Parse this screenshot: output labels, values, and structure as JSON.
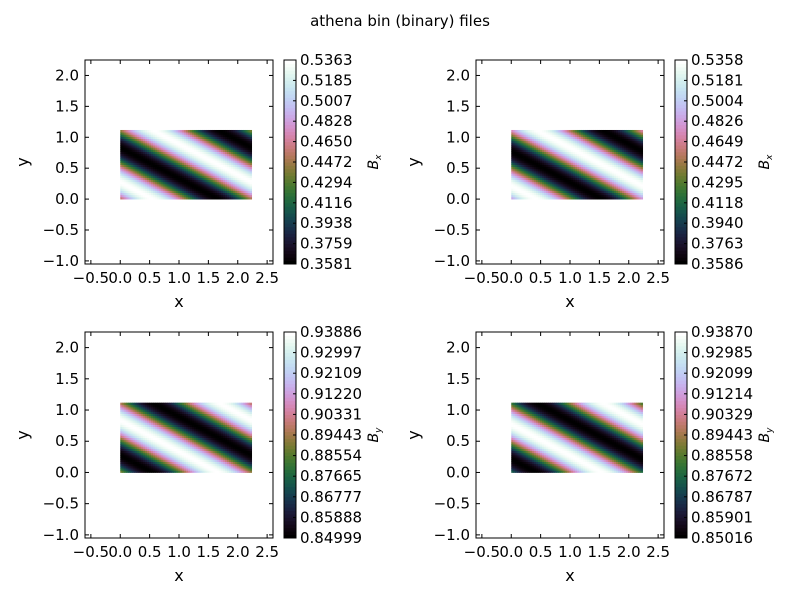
{
  "figure": {
    "title": "athena bin (binary) files"
  },
  "chart_data": [
    {
      "type": "heatmap",
      "title": "",
      "xlabel": "x",
      "ylabel": "y",
      "colorbar_label": "B_x",
      "colorbar_label_base": "B",
      "colorbar_label_sub": "x",
      "xlim": [
        -0.6,
        2.6
      ],
      "ylim": [
        -1.05,
        2.25
      ],
      "xticks": [
        -0.5,
        0.0,
        0.5,
        1.0,
        1.5,
        2.0,
        2.5
      ],
      "xtick_labels": [
        "−0.5",
        "0.0",
        "0.5",
        "1.0",
        "1.5",
        "2.0",
        "2.5"
      ],
      "yticks": [
        -1.0,
        -0.5,
        0.0,
        0.5,
        1.0,
        1.5,
        2.0
      ],
      "ytick_labels": [
        "−1.0",
        "−0.5",
        "0.0",
        "0.5",
        "1.0",
        "1.5",
        "2.0"
      ],
      "data_extent": {
        "x": [
          0.0,
          2.2361
        ],
        "y": [
          0.0,
          1.118
        ]
      },
      "colormap": "cubehelix",
      "pattern": {
        "field": "Bx",
        "phase": 0.0
      },
      "vmin": 0.3581,
      "vmax": 0.5363,
      "colorbar_ticks": [
        "0.5363",
        "0.5185",
        "0.5007",
        "0.4828",
        "0.4650",
        "0.4472",
        "0.4294",
        "0.4116",
        "0.3938",
        "0.3759",
        "0.3581"
      ],
      "grid": false
    },
    {
      "type": "heatmap",
      "title": "",
      "xlabel": "x",
      "ylabel": "y",
      "colorbar_label": "B_x",
      "colorbar_label_base": "B",
      "colorbar_label_sub": "x",
      "xlim": [
        -0.6,
        2.6
      ],
      "ylim": [
        -1.05,
        2.25
      ],
      "xticks": [
        -0.5,
        0.0,
        0.5,
        1.0,
        1.5,
        2.0,
        2.5
      ],
      "xtick_labels": [
        "−0.5",
        "0.0",
        "0.5",
        "1.0",
        "1.5",
        "2.0",
        "2.5"
      ],
      "yticks": [
        -1.0,
        -0.5,
        0.0,
        0.5,
        1.0,
        1.5,
        2.0
      ],
      "ytick_labels": [
        "−1.0",
        "−0.5",
        "0.0",
        "0.5",
        "1.0",
        "1.5",
        "2.0"
      ],
      "data_extent": {
        "x": [
          0.0,
          2.2361
        ],
        "y": [
          0.0,
          1.118
        ]
      },
      "colormap": "cubehelix",
      "pattern": {
        "field": "Bx",
        "phase": 0.35
      },
      "vmin": 0.3586,
      "vmax": 0.5358,
      "colorbar_ticks": [
        "0.5358",
        "0.5181",
        "0.5004",
        "0.4826",
        "0.4649",
        "0.4472",
        "0.4295",
        "0.4118",
        "0.3940",
        "0.3763",
        "0.3586"
      ],
      "grid": false
    },
    {
      "type": "heatmap",
      "title": "",
      "xlabel": "x",
      "ylabel": "y",
      "colorbar_label": "B_y",
      "colorbar_label_base": "B",
      "colorbar_label_sub": "y",
      "xlim": [
        -0.6,
        2.6
      ],
      "ylim": [
        -1.05,
        2.25
      ],
      "xticks": [
        -0.5,
        0.0,
        0.5,
        1.0,
        1.5,
        2.0,
        2.5
      ],
      "xtick_labels": [
        "−0.5",
        "0.0",
        "0.5",
        "1.0",
        "1.5",
        "2.0",
        "2.5"
      ],
      "yticks": [
        -1.0,
        -0.5,
        0.0,
        0.5,
        1.0,
        1.5,
        2.0
      ],
      "ytick_labels": [
        "−1.0",
        "−0.5",
        "0.0",
        "0.5",
        "1.0",
        "1.5",
        "2.0"
      ],
      "data_extent": {
        "x": [
          0.0,
          2.2361
        ],
        "y": [
          0.0,
          1.118
        ]
      },
      "colormap": "cubehelix",
      "pattern": {
        "field": "By",
        "phase": 0.0
      },
      "vmin": 0.84999,
      "vmax": 0.93886,
      "colorbar_ticks": [
        "0.93886",
        "0.92997",
        "0.92109",
        "0.91220",
        "0.90331",
        "0.89443",
        "0.88554",
        "0.87665",
        "0.86777",
        "0.85888",
        "0.84999"
      ],
      "grid": false
    },
    {
      "type": "heatmap",
      "title": "",
      "xlabel": "x",
      "ylabel": "y",
      "colorbar_label": "B_y",
      "colorbar_label_base": "B",
      "colorbar_label_sub": "y",
      "xlim": [
        -0.6,
        2.6
      ],
      "ylim": [
        -1.05,
        2.25
      ],
      "xticks": [
        -0.5,
        0.0,
        0.5,
        1.0,
        1.5,
        2.0,
        2.5
      ],
      "xtick_labels": [
        "−0.5",
        "0.0",
        "0.5",
        "1.0",
        "1.5",
        "2.0",
        "2.5"
      ],
      "yticks": [
        -1.0,
        -0.5,
        0.0,
        0.5,
        1.0,
        1.5,
        2.0
      ],
      "ytick_labels": [
        "−1.0",
        "−0.5",
        "0.0",
        "0.5",
        "1.0",
        "1.5",
        "2.0"
      ],
      "data_extent": {
        "x": [
          0.0,
          2.2361
        ],
        "y": [
          0.0,
          1.118
        ]
      },
      "colormap": "cubehelix",
      "pattern": {
        "field": "By",
        "phase": 0.35
      },
      "vmin": 0.85016,
      "vmax": 0.9387,
      "colorbar_ticks": [
        "0.93870",
        "0.92985",
        "0.92099",
        "0.91214",
        "0.90329",
        "0.89443",
        "0.88558",
        "0.87672",
        "0.86787",
        "0.85901",
        "0.85016"
      ],
      "grid": false
    }
  ]
}
